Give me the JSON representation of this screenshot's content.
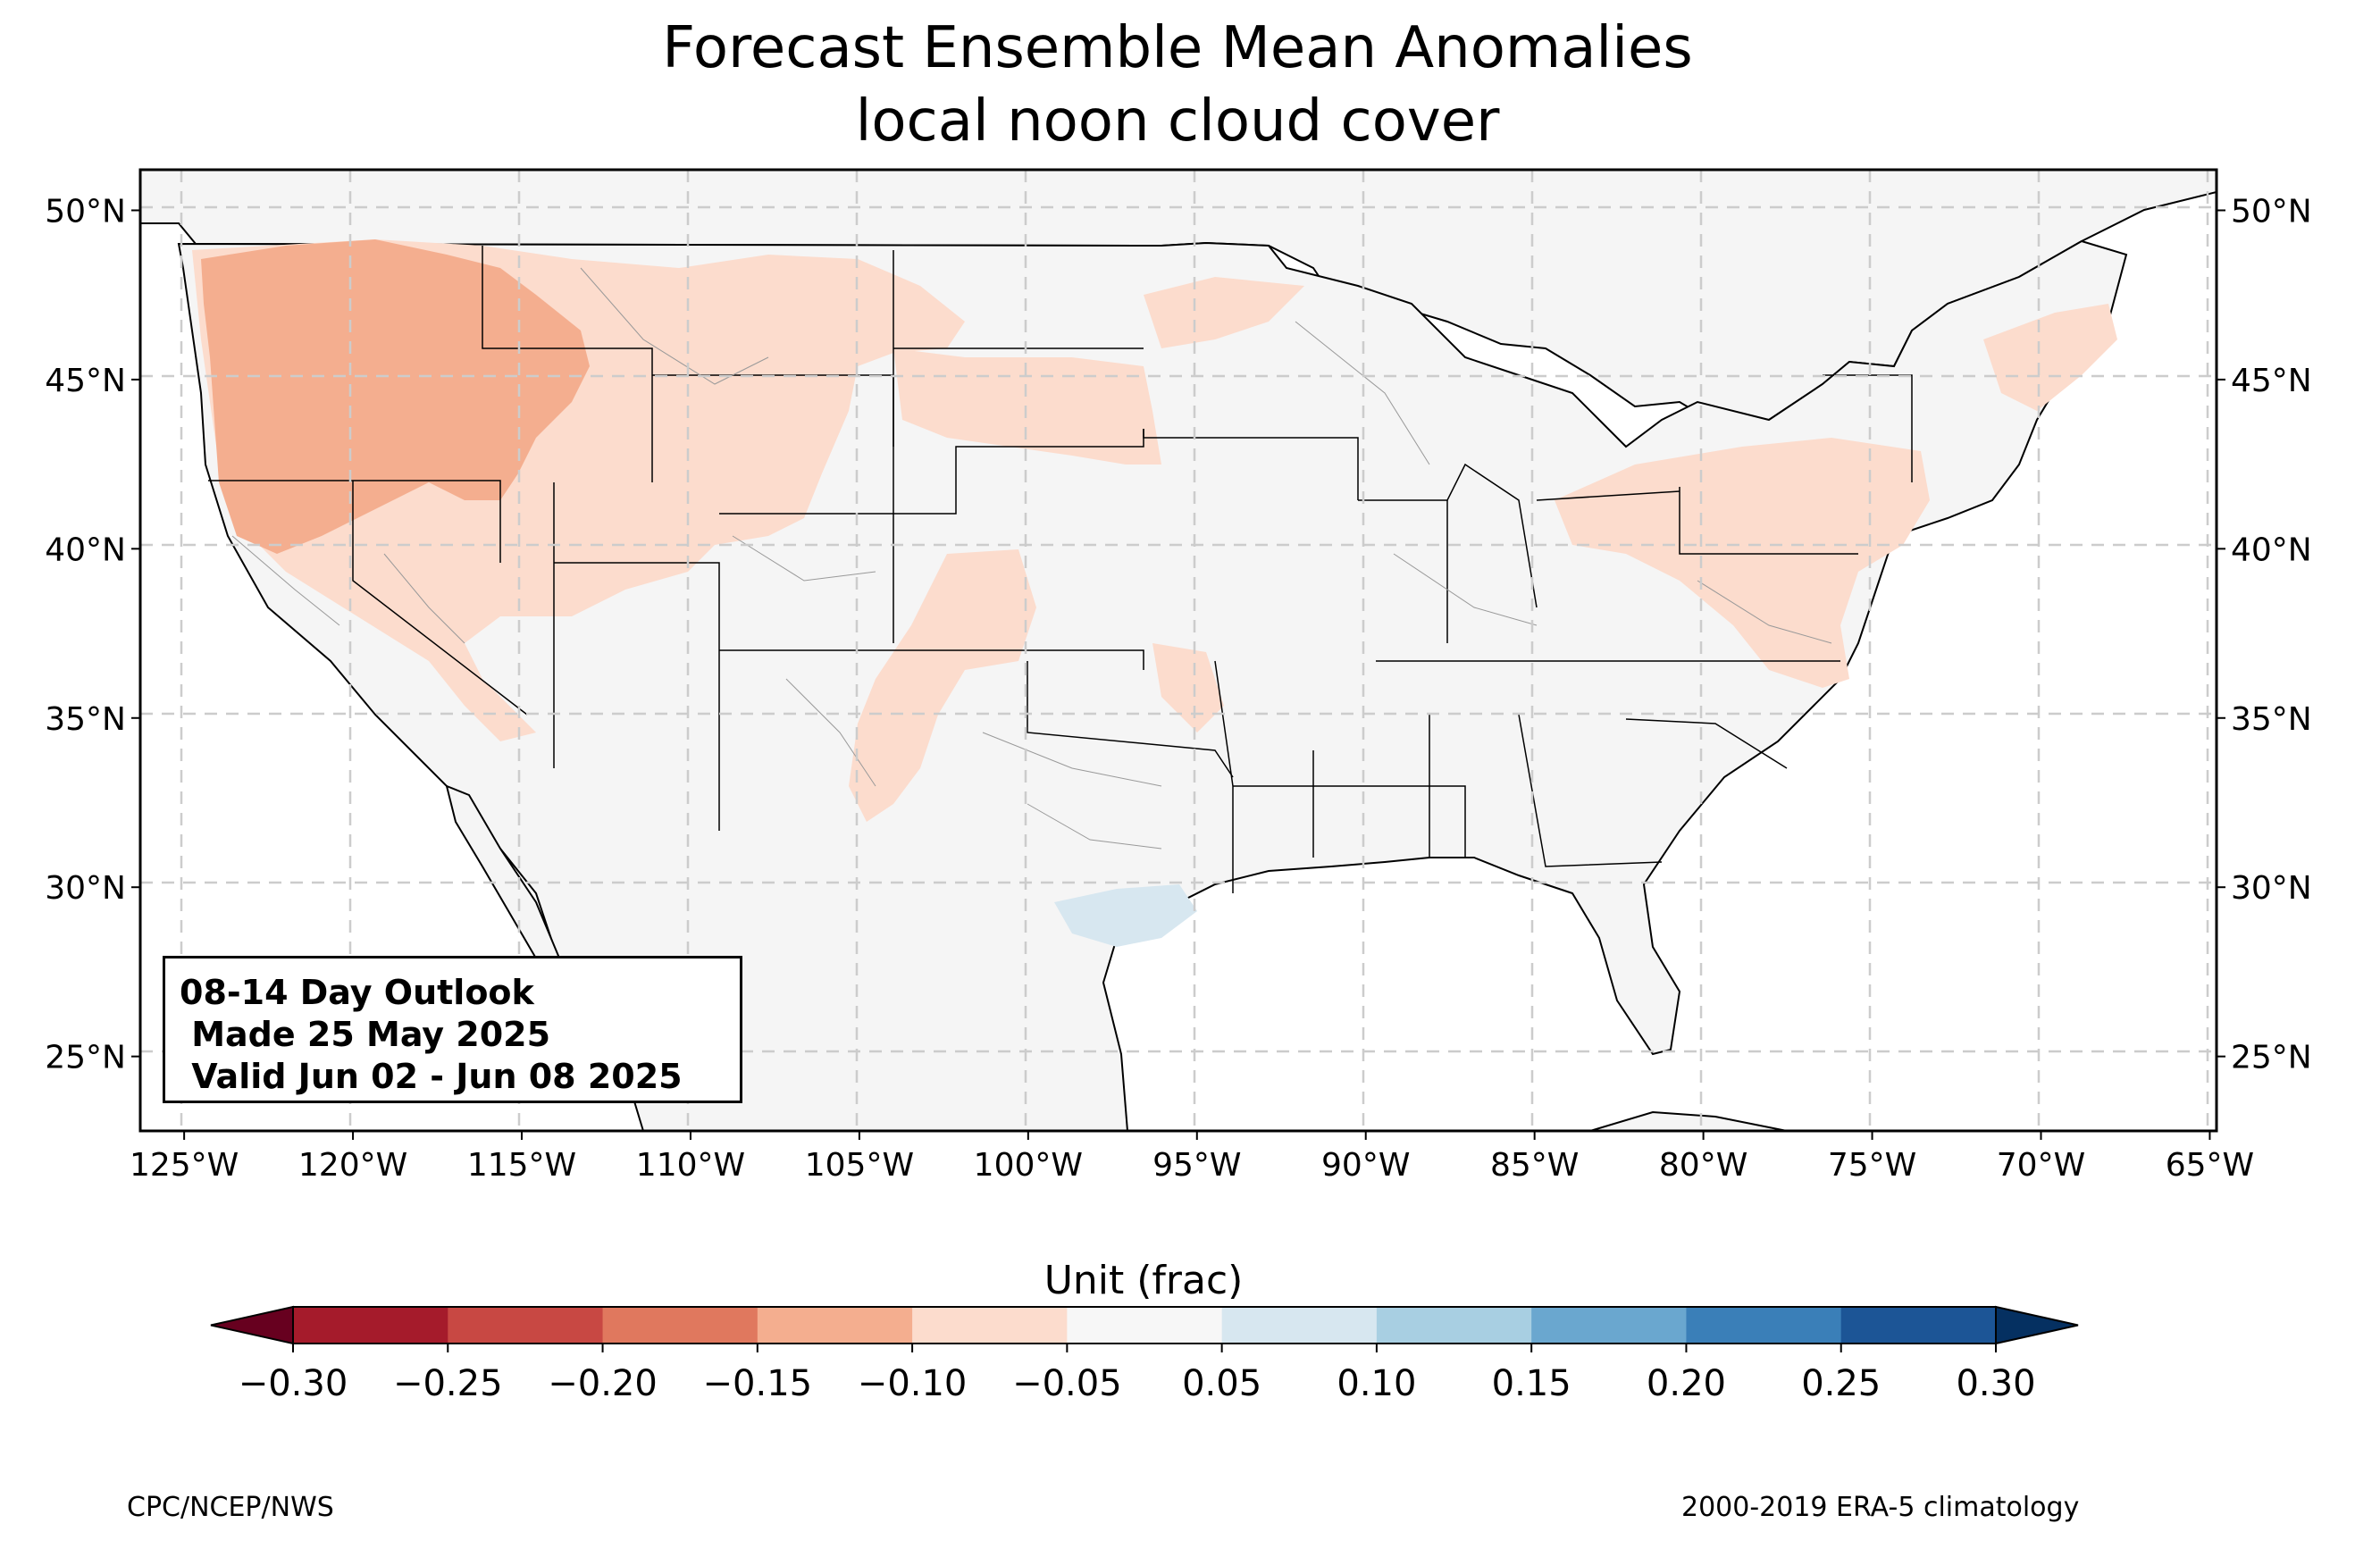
{
  "title": {
    "line1": "Forecast Ensemble Mean Anomalies",
    "line2": "local noon cloud cover"
  },
  "info_box": {
    "line1": "08-14 Day Outlook",
    "line2": " Made 25 May 2025",
    "line3": " Valid Jun 02 - Jun 08 2025"
  },
  "axes": {
    "lon_ticks": [
      "125°W",
      "120°W",
      "115°W",
      "110°W",
      "105°W",
      "100°W",
      "95°W",
      "90°W",
      "85°W",
      "80°W",
      "75°W",
      "70°W",
      "65°W"
    ],
    "lat_ticks": [
      "50°N",
      "45°N",
      "40°N",
      "35°N",
      "30°N",
      "25°N"
    ],
    "lon_range": [
      -126.3,
      -64.8
    ],
    "lat_range": [
      22.8,
      51.2
    ]
  },
  "colorbar": {
    "title": "Unit (frac)",
    "ticks": [
      "−0.30",
      "−0.25",
      "−0.20",
      "−0.15",
      "−0.10",
      "−0.05",
      "0.05",
      "0.10",
      "0.15",
      "0.20",
      "0.25",
      "0.30"
    ],
    "colors": [
      "#a51b2b",
      "#c84843",
      "#e0785e",
      "#f4ae8f",
      "#fcdccd",
      "#f7f7f7",
      "#d7e7f0",
      "#a8cfe2",
      "#6aa7cf",
      "#3a7fb8",
      "#1c5596"
    ],
    "under_color": "#67001f",
    "over_color": "#053061"
  },
  "footer": {
    "left": "CPC/NCEP/NWS",
    "right": "2000-2019 ERA-5 climatology"
  },
  "colors": {
    "land": "#f5f5f5",
    "ocean": "#ffffff",
    "anom_neg_weak": "#fcdccd",
    "anom_neg_mod": "#f4ae8f",
    "anom_pos_weak": "#d7e7f0"
  }
}
